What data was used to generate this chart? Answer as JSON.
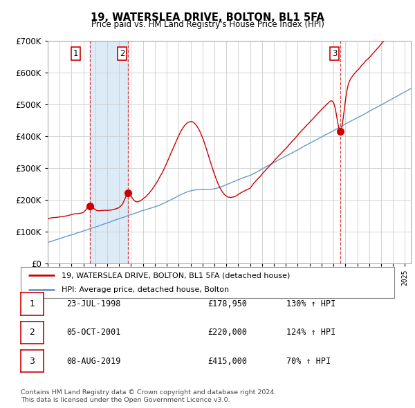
{
  "title": "19, WATERSLEA DRIVE, BOLTON, BL1 5FA",
  "subtitle": "Price paid vs. HM Land Registry's House Price Index (HPI)",
  "property_label": "19, WATERSLEA DRIVE, BOLTON, BL1 5FA (detached house)",
  "hpi_label": "HPI: Average price, detached house, Bolton",
  "property_color": "#cc0000",
  "hpi_color": "#6699cc",
  "background_color": "#ffffff",
  "grid_color": "#cccccc",
  "shade_color": "#d8e8f5",
  "purchases": [
    {
      "num": 1,
      "date": "23-JUL-1998",
      "price": 178950,
      "hpi_pct": "130% ↑ HPI",
      "year": 1998.55
    },
    {
      "num": 2,
      "date": "05-OCT-2001",
      "price": 220000,
      "hpi_pct": "124% ↑ HPI",
      "year": 2001.76
    },
    {
      "num": 3,
      "date": "08-AUG-2019",
      "price": 415000,
      "hpi_pct": "70% ↑ HPI",
      "year": 2019.6
    }
  ],
  "footer": "Contains HM Land Registry data © Crown copyright and database right 2024.\nThis data is licensed under the Open Government Licence v3.0.",
  "ylim": [
    0,
    700000
  ],
  "xlim_start": 1995.0,
  "xlim_end": 2025.5
}
